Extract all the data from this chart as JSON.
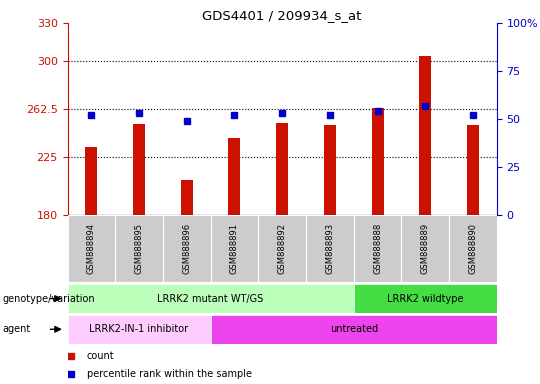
{
  "title": "GDS4401 / 209934_s_at",
  "samples": [
    "GSM888894",
    "GSM888895",
    "GSM888896",
    "GSM888891",
    "GSM888892",
    "GSM888893",
    "GSM888888",
    "GSM888889",
    "GSM888890"
  ],
  "counts": [
    233,
    251,
    207,
    240,
    252,
    250,
    264,
    304,
    250
  ],
  "percentiles": [
    52,
    53,
    49,
    52,
    53,
    52,
    54,
    57,
    52
  ],
  "ylim_left": [
    180,
    330
  ],
  "ylim_right": [
    0,
    100
  ],
  "yticks_left": [
    180,
    225,
    262.5,
    300,
    330
  ],
  "yticks_right": [
    0,
    25,
    50,
    75,
    100
  ],
  "bar_color": "#cc1100",
  "dot_color": "#0000cc",
  "grid_yticks": [
    225,
    262.5,
    300
  ],
  "genotype_groups": [
    {
      "label": "LRRK2 mutant WT/GS",
      "start": 0,
      "end": 6,
      "color": "#bbffbb"
    },
    {
      "label": "LRRK2 wildtype",
      "start": 6,
      "end": 9,
      "color": "#44dd44"
    }
  ],
  "agent_groups": [
    {
      "label": "LRRK2-IN-1 inhibitor",
      "start": 0,
      "end": 3,
      "color": "#ffccff"
    },
    {
      "label": "untreated",
      "start": 3,
      "end": 9,
      "color": "#ee44ee"
    }
  ],
  "legend_count_label": "count",
  "legend_pct_label": "percentile rank within the sample",
  "geno_label": "genotype/variation",
  "agent_label": "agent"
}
